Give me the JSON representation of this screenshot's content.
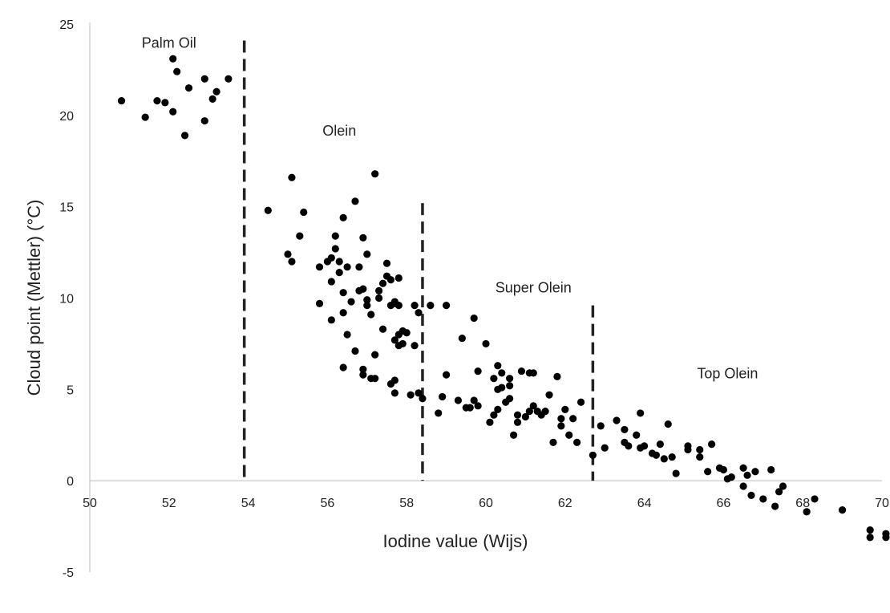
{
  "chart_data": {
    "type": "scatter",
    "title": "",
    "xlabel": "Iodine value (Wijs)",
    "ylabel": "Cloud point (Mettler) (°C)",
    "xlim": [
      50,
      70
    ],
    "ylim": [
      -5,
      25
    ],
    "xticks": [
      50,
      52,
      54,
      56,
      58,
      60,
      62,
      64,
      66,
      68,
      70
    ],
    "yticks": [
      -5,
      0,
      5,
      10,
      15,
      20,
      25
    ],
    "grid": false,
    "legend": "none",
    "marker_color": "#000000",
    "divider_color": "#222222",
    "region_labels": [
      "Palm Oil",
      "Olein",
      "Super Olein",
      "Top Olein"
    ],
    "dividers_x": [
      53.9,
      58.4,
      62.7
    ],
    "series": [
      {
        "points": [
          [
            50.8,
            20.8
          ],
          [
            51.4,
            19.9
          ],
          [
            51.7,
            20.8
          ],
          [
            51.9,
            20.7
          ],
          [
            52.1,
            20.2
          ],
          [
            52.1,
            23.1
          ],
          [
            52.2,
            22.4
          ],
          [
            52.4,
            18.9
          ],
          [
            52.5,
            21.5
          ],
          [
            52.9,
            19.7
          ],
          [
            52.9,
            22.0
          ],
          [
            53.1,
            20.9
          ],
          [
            53.2,
            21.3
          ],
          [
            53.5,
            22.0
          ],
          [
            54.5,
            14.8
          ],
          [
            55.0,
            12.4
          ],
          [
            55.1,
            12.0
          ],
          [
            55.1,
            16.6
          ],
          [
            55.3,
            13.4
          ],
          [
            55.4,
            14.7
          ],
          [
            55.8,
            9.7
          ],
          [
            55.8,
            11.7
          ],
          [
            56.0,
            12.0
          ],
          [
            56.1,
            8.8
          ],
          [
            56.1,
            10.9
          ],
          [
            56.1,
            12.2
          ],
          [
            56.2,
            12.7
          ],
          [
            56.2,
            13.4
          ],
          [
            56.3,
            11.4
          ],
          [
            56.3,
            12.0
          ],
          [
            56.4,
            6.2
          ],
          [
            56.4,
            9.2
          ],
          [
            56.4,
            10.3
          ],
          [
            56.4,
            14.4
          ],
          [
            56.5,
            8.0
          ],
          [
            56.5,
            11.7
          ],
          [
            56.6,
            9.8
          ],
          [
            56.7,
            7.1
          ],
          [
            56.7,
            15.3
          ],
          [
            56.8,
            10.4
          ],
          [
            56.8,
            11.7
          ],
          [
            56.9,
            10.5
          ],
          [
            56.9,
            13.3
          ],
          [
            56.9,
            6.1
          ],
          [
            56.9,
            5.8
          ],
          [
            57.0,
            9.6
          ],
          [
            57.0,
            12.4
          ],
          [
            57.0,
            9.9
          ],
          [
            57.1,
            9.1
          ],
          [
            57.1,
            5.6
          ],
          [
            57.2,
            5.6
          ],
          [
            57.2,
            6.9
          ],
          [
            57.2,
            16.8
          ],
          [
            57.3,
            10.0
          ],
          [
            57.3,
            10.4
          ],
          [
            57.4,
            8.3
          ],
          [
            57.4,
            10.8
          ],
          [
            57.5,
            11.2
          ],
          [
            57.5,
            11.9
          ],
          [
            57.6,
            5.3
          ],
          [
            57.6,
            9.6
          ],
          [
            57.6,
            11.0
          ],
          [
            57.7,
            4.8
          ],
          [
            57.7,
            5.5
          ],
          [
            57.7,
            7.7
          ],
          [
            57.7,
            9.7
          ],
          [
            57.7,
            9.8
          ],
          [
            57.8,
            7.4
          ],
          [
            57.8,
            8.0
          ],
          [
            57.8,
            9.6
          ],
          [
            57.8,
            11.1
          ],
          [
            57.9,
            7.5
          ],
          [
            57.9,
            8.2
          ],
          [
            58.0,
            8.1
          ],
          [
            58.1,
            4.7
          ],
          [
            58.2,
            7.4
          ],
          [
            58.2,
            9.6
          ],
          [
            58.3,
            9.2
          ],
          [
            58.3,
            4.8
          ],
          [
            58.4,
            4.5
          ],
          [
            58.6,
            9.6
          ],
          [
            58.8,
            3.7
          ],
          [
            58.9,
            4.6
          ],
          [
            59.0,
            5.8
          ],
          [
            59.0,
            9.6
          ],
          [
            59.3,
            4.4
          ],
          [
            59.4,
            7.8
          ],
          [
            59.5,
            4.0
          ],
          [
            59.6,
            4.0
          ],
          [
            59.7,
            4.4
          ],
          [
            59.7,
            8.9
          ],
          [
            59.8,
            6.0
          ],
          [
            59.8,
            4.1
          ],
          [
            60.0,
            7.5
          ],
          [
            60.1,
            3.2
          ],
          [
            60.2,
            3.6
          ],
          [
            60.2,
            5.6
          ],
          [
            60.3,
            3.9
          ],
          [
            60.3,
            5.0
          ],
          [
            60.3,
            6.3
          ],
          [
            60.4,
            5.1
          ],
          [
            60.4,
            5.9
          ],
          [
            60.5,
            4.3
          ],
          [
            60.6,
            4.5
          ],
          [
            60.6,
            5.6
          ],
          [
            60.6,
            5.2
          ],
          [
            60.7,
            2.5
          ],
          [
            60.8,
            3.2
          ],
          [
            60.8,
            3.6
          ],
          [
            60.9,
            6.0
          ],
          [
            61.0,
            3.5
          ],
          [
            61.1,
            3.8
          ],
          [
            61.1,
            5.9
          ],
          [
            61.2,
            4.1
          ],
          [
            61.2,
            5.9
          ],
          [
            61.3,
            3.8
          ],
          [
            61.4,
            3.6
          ],
          [
            61.5,
            3.8
          ],
          [
            61.6,
            4.7
          ],
          [
            61.7,
            2.1
          ],
          [
            61.8,
            5.7
          ],
          [
            61.9,
            3.0
          ],
          [
            61.9,
            3.4
          ],
          [
            62.0,
            3.9
          ],
          [
            62.1,
            2.5
          ],
          [
            62.2,
            3.4
          ],
          [
            62.3,
            2.1
          ],
          [
            62.4,
            4.3
          ],
          [
            62.7,
            1.4
          ],
          [
            62.9,
            3.0
          ],
          [
            63.0,
            1.8
          ],
          [
            63.3,
            3.3
          ],
          [
            63.5,
            2.1
          ],
          [
            63.5,
            2.8
          ],
          [
            63.6,
            1.9
          ],
          [
            63.8,
            2.5
          ],
          [
            63.9,
            1.8
          ],
          [
            63.9,
            3.7
          ],
          [
            64.0,
            1.9
          ],
          [
            64.2,
            1.5
          ],
          [
            64.3,
            1.4
          ],
          [
            64.4,
            2.0
          ],
          [
            64.5,
            1.2
          ],
          [
            64.6,
            3.1
          ],
          [
            64.7,
            1.3
          ],
          [
            64.8,
            0.4
          ],
          [
            65.1,
            1.9
          ],
          [
            65.1,
            1.7
          ],
          [
            65.4,
            1.7
          ],
          [
            65.4,
            1.3
          ],
          [
            65.6,
            0.5
          ],
          [
            65.7,
            2.0
          ],
          [
            65.9,
            0.7
          ],
          [
            66.0,
            0.6
          ],
          [
            66.1,
            0.1
          ],
          [
            66.2,
            0.2
          ],
          [
            66.5,
            0.7
          ],
          [
            66.5,
            -0.3
          ],
          [
            66.6,
            0.3
          ],
          [
            66.7,
            -0.8
          ],
          [
            66.8,
            0.5
          ],
          [
            67.0,
            -1.0
          ],
          [
            67.2,
            0.6
          ],
          [
            67.3,
            -1.4
          ],
          [
            67.4,
            -0.6
          ],
          [
            67.5,
            -0.3
          ],
          [
            68.1,
            -1.7
          ],
          [
            68.3,
            -1.0
          ],
          [
            69.0,
            -1.6
          ],
          [
            69.7,
            -2.7
          ],
          [
            69.7,
            -3.1
          ],
          [
            70.1,
            -2.9
          ],
          [
            70.1,
            -3.1
          ]
        ]
      }
    ]
  }
}
